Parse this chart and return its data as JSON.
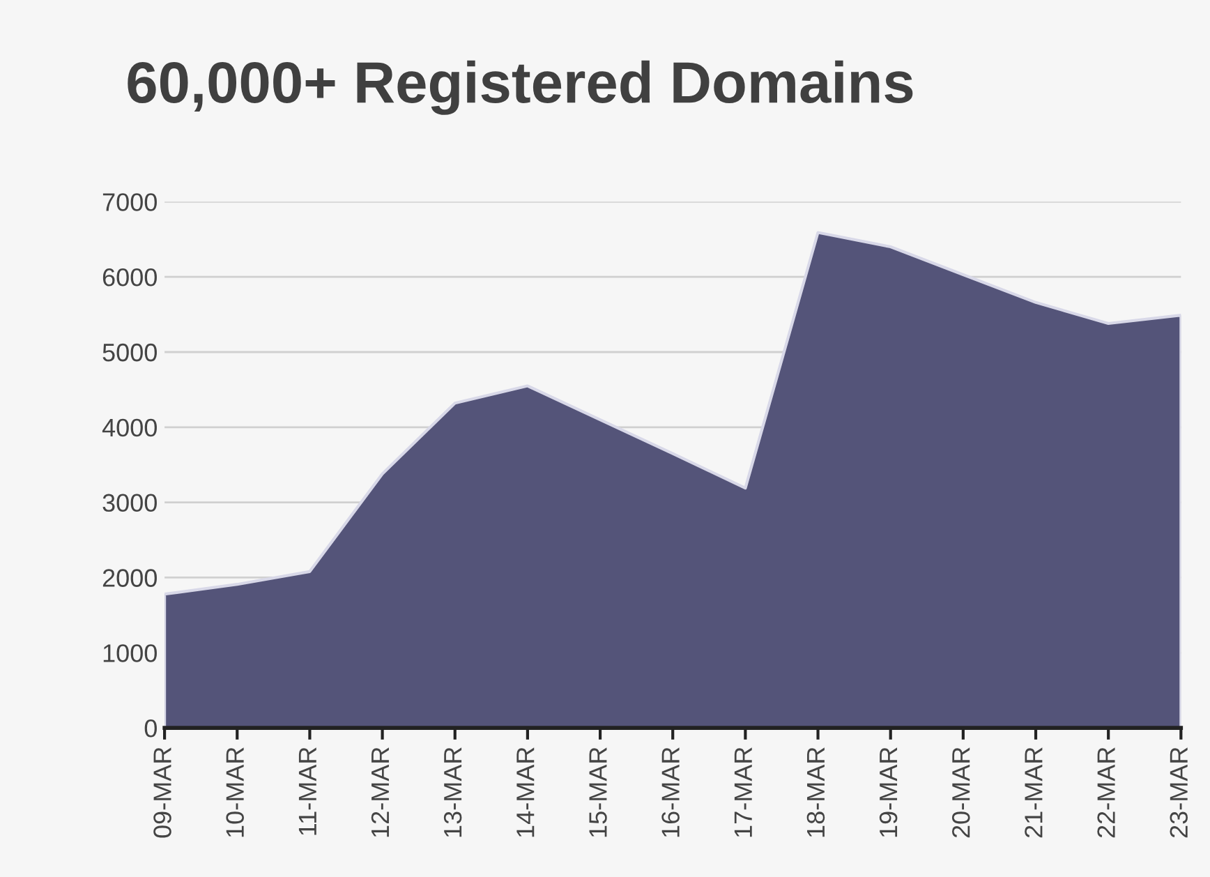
{
  "chart_data": {
    "type": "area",
    "title": "60,000+ Registered Domains",
    "categories": [
      "09-MAR",
      "10-MAR",
      "11-MAR",
      "12-MAR",
      "13-MAR",
      "14-MAR",
      "15-MAR",
      "16-MAR",
      "17-MAR",
      "18-MAR",
      "19-MAR",
      "20-MAR",
      "21-MAR",
      "22-MAR",
      "23-MAR"
    ],
    "series": [
      {
        "color": "#545479",
        "values": [
          1780,
          1910,
          2080,
          3380,
          4320,
          4550,
          4100,
          3650,
          3190,
          6590,
          6400,
          6030,
          5660,
          5380,
          5490
        ]
      }
    ],
    "ylim": [
      0,
      7000
    ],
    "yticks": [
      0,
      1000,
      2000,
      3000,
      4000,
      5000,
      6000,
      7000
    ],
    "grid": "y",
    "legend": false
  }
}
